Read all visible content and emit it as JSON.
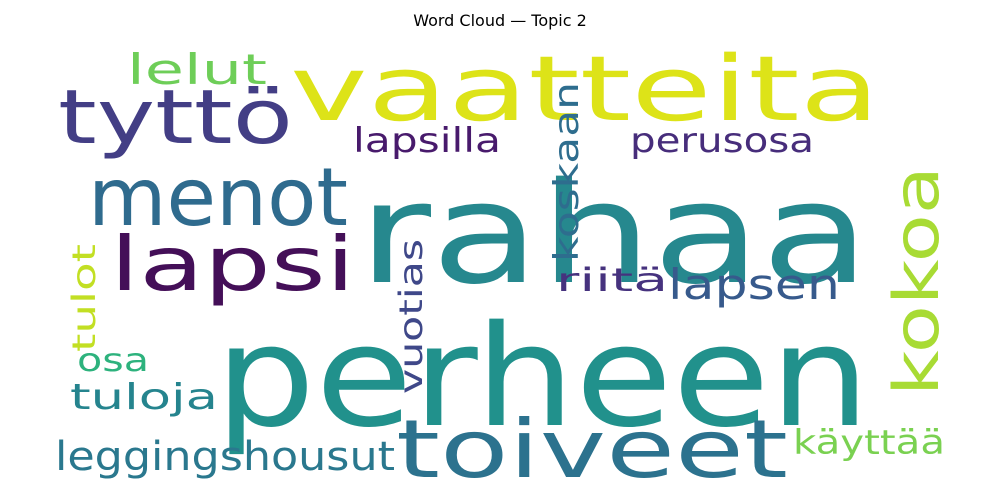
{
  "title": "Word Cloud — Topic 2",
  "chart_data": {
    "type": "word_cloud",
    "title": "Word Cloud — Topic 2",
    "words": [
      {
        "text": "rahaa",
        "color": "#26888e"
      },
      {
        "text": "perheen",
        "color": "#21918c"
      },
      {
        "text": "vaatteita",
        "color": "#dde318"
      },
      {
        "text": "toiveet",
        "color": "#2c728e"
      },
      {
        "text": "menot",
        "color": "#2f6b8e"
      },
      {
        "text": "lapsi",
        "color": "#440f58"
      },
      {
        "text": "tyttö",
        "color": "#433e85"
      },
      {
        "text": "kokoa",
        "color": "#a8db34"
      },
      {
        "text": "lapsen",
        "color": "#375a8c"
      },
      {
        "text": "leggingshousut",
        "color": "#2a788e"
      },
      {
        "text": "lelut",
        "color": "#6ece58"
      },
      {
        "text": "lapsilla",
        "color": "#481a6c"
      },
      {
        "text": "perusosa",
        "color": "#472d7b"
      },
      {
        "text": "koskaan",
        "color": "#2e6d8e"
      },
      {
        "text": "vuotias",
        "color": "#3f4889"
      },
      {
        "text": "riitä",
        "color": "#46327e"
      },
      {
        "text": "käyttää",
        "color": "#7ad151"
      },
      {
        "text": "tuloja",
        "color": "#25848e"
      },
      {
        "text": "osa",
        "color": "#2db27d"
      },
      {
        "text": "tulot",
        "color": "#c2df23"
      }
    ]
  }
}
